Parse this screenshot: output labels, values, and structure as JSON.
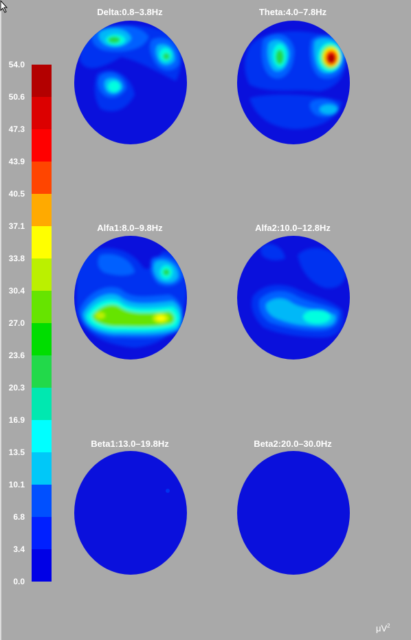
{
  "scale": {
    "labels": [
      "54.0",
      "50.6",
      "47.3",
      "43.9",
      "40.5",
      "37.1",
      "33.8",
      "30.4",
      "27.0",
      "23.6",
      "20.3",
      "16.9",
      "13.5",
      "10.1",
      "6.8",
      "3.4",
      "0.0"
    ],
    "colors": [
      "#b30000",
      "#dc0000",
      "#ff0000",
      "#ff4500",
      "#ffaa00",
      "#ffff00",
      "#bbf000",
      "#66e400",
      "#00dd00",
      "#22d94a",
      "#00e8b0",
      "#00ffff",
      "#00c8f8",
      "#0050ff",
      "#0020ff",
      "#0000e6"
    ],
    "unit": "μV",
    "unit_sup": "2"
  },
  "maps": [
    {
      "id": "delta",
      "title": "Delta:0.8–3.8Hz"
    },
    {
      "id": "theta",
      "title": "Theta:4.0–7.8Hz"
    },
    {
      "id": "alfa1",
      "title": "Alfa1:8.0–9.8Hz"
    },
    {
      "id": "alfa2",
      "title": "Alfa2:10.0–12.8Hz"
    },
    {
      "id": "beta1",
      "title": "Beta1:13.0–19.8Hz"
    },
    {
      "id": "beta2",
      "title": "Beta2:20.0–30.0Hz"
    }
  ]
}
